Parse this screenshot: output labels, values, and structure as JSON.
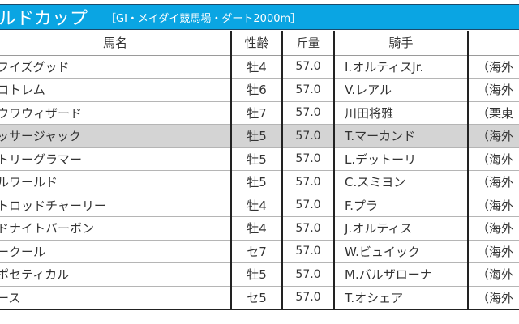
{
  "title": {
    "race_name": "ルドカップ",
    "race_info": "［GI・メイダイ競馬場・ダート2000m］",
    "bg_color": "#0aa5e3"
  },
  "table": {
    "headers": {
      "horse": "馬名",
      "sex_age": "性齢",
      "weight": "斤量",
      "jockey": "騎手",
      "affiliation": ""
    },
    "highlight_color": "#d4d4d4",
    "rows": [
      {
        "horse": "フイズグッド",
        "sex_age": "牡4",
        "weight": "57.0",
        "jockey": "I.オルティスJr.",
        "affiliation": "（海外"
      },
      {
        "horse": "ロトレム",
        "sex_age": "牡6",
        "weight": "57.0",
        "jockey": "V.レアル",
        "affiliation": "（海外"
      },
      {
        "horse": "ウワウィザード",
        "sex_age": "牡7",
        "weight": "57.0",
        "jockey": "川田将雅",
        "affiliation": "（栗東"
      },
      {
        "horse": "ッサージャック",
        "sex_age": "牡5",
        "weight": "57.0",
        "jockey": "T.マーカンド",
        "affiliation": "（海外"
      },
      {
        "horse": "トリーグラマー",
        "sex_age": "牡5",
        "weight": "57.0",
        "jockey": "L.デットーリ",
        "affiliation": "（海外"
      },
      {
        "horse": "ルワールド",
        "sex_age": "牡5",
        "weight": "57.0",
        "jockey": "C.スミヨン",
        "affiliation": "（海外"
      },
      {
        "horse": "トロッドチャーリー",
        "sex_age": "牡4",
        "weight": "57.0",
        "jockey": "F.プラ",
        "affiliation": "（海外"
      },
      {
        "horse": "ドナイトバーボン",
        "sex_age": "牡4",
        "weight": "57.0",
        "jockey": "J.オルティス",
        "affiliation": "（海外"
      },
      {
        "horse": "ークール",
        "sex_age": "セ7",
        "weight": "57.0",
        "jockey": "W.ビュイック",
        "affiliation": "（海外"
      },
      {
        "horse": "ポセティカル",
        "sex_age": "牡5",
        "weight": "57.0",
        "jockey": "M.バルザローナ",
        "affiliation": "（海外"
      },
      {
        "horse": "ース",
        "sex_age": "セ5",
        "weight": "57.0",
        "jockey": "T.オシェア",
        "affiliation": "（海外"
      }
    ]
  }
}
